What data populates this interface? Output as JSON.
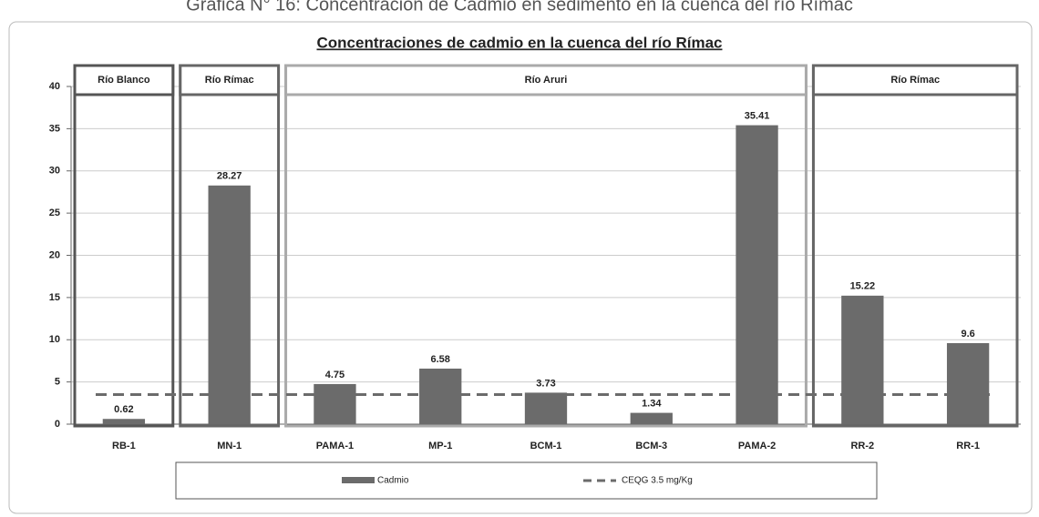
{
  "caption": "Gráfica N° 16: Concentración de Cadmio en sedimento en la cuenca del río Rímac",
  "chart_data": {
    "type": "bar",
    "title": "Concentraciones de cadmio en la cuenca del río Rímac",
    "categories": [
      "RB-1",
      "MN-1",
      "PAMA-1",
      "MP-1",
      "BCM-1",
      "BCM-3",
      "PAMA-2",
      "RR-2",
      "RR-1"
    ],
    "series": [
      {
        "name": "Cadmio",
        "color": "#6b6b6b",
        "values": [
          0.62,
          28.27,
          4.75,
          6.58,
          3.73,
          1.34,
          35.41,
          15.22,
          9.6
        ]
      }
    ],
    "reference": {
      "name": "CEQG 3.5 mg/Kg",
      "value": 3.5,
      "color": "#6b6b6b"
    },
    "groups": [
      {
        "label": "Río Blanco",
        "count": 1,
        "color": "#555555"
      },
      {
        "label": "Río Rímac",
        "count": 1,
        "color": "#666666"
      },
      {
        "label": "Río Aruri",
        "count": 5,
        "color": "#aaaaaa"
      },
      {
        "label": "Río Rímac",
        "count": 2,
        "color": "#666666"
      }
    ],
    "ylim": [
      0,
      40
    ],
    "yticks": [
      0,
      5,
      10,
      15,
      20,
      25,
      30,
      35,
      40
    ],
    "grid": true,
    "legend": "bottom"
  }
}
